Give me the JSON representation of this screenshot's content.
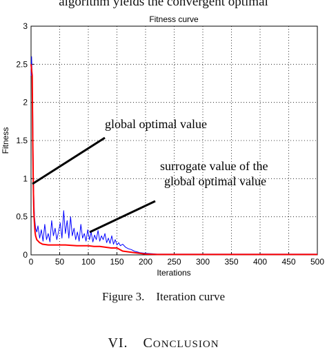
{
  "page": {
    "top_text": "algorithm yields the convergent optimal",
    "caption": "Figure 3.    Iteration curve",
    "section_number": "VI.",
    "section_title_first": "C",
    "section_title_rest": "ONCLUSION"
  },
  "chart_data": {
    "type": "line",
    "title": "Fitness curve",
    "xlabel": "Iterations",
    "ylabel": "Fitness",
    "xlim": [
      0,
      500
    ],
    "ylim": [
      0,
      3
    ],
    "x_ticks": [
      0,
      50,
      100,
      150,
      200,
      250,
      300,
      350,
      400,
      450,
      500
    ],
    "y_ticks": [
      0,
      0.5,
      1,
      1.5,
      2,
      2.5,
      3
    ],
    "grid": true,
    "series": [
      {
        "color": "#0000ff",
        "x": [
          0,
          1,
          2,
          3,
          4,
          5,
          6,
          8,
          10,
          12,
          15,
          18,
          21,
          24,
          27,
          30,
          33,
          36,
          39,
          42,
          45,
          48,
          51,
          54,
          57,
          60,
          63,
          66,
          69,
          72,
          75,
          78,
          81,
          84,
          87,
          90,
          93,
          96,
          99,
          102,
          105,
          108,
          111,
          114,
          117,
          120,
          123,
          126,
          129,
          132,
          135,
          138,
          141,
          144,
          147,
          150,
          153,
          156,
          160,
          165,
          170,
          175,
          180,
          185,
          190,
          200,
          210,
          220,
          240,
          260,
          300,
          350,
          400,
          450,
          500
        ],
        "y": [
          2.35,
          2.6,
          2.3,
          1.9,
          1.1,
          0.75,
          0.5,
          0.35,
          0.3,
          0.38,
          0.22,
          0.33,
          0.18,
          0.4,
          0.2,
          0.28,
          0.17,
          0.45,
          0.25,
          0.35,
          0.2,
          0.3,
          0.42,
          0.22,
          0.58,
          0.28,
          0.45,
          0.22,
          0.5,
          0.25,
          0.35,
          0.2,
          0.3,
          0.18,
          0.4,
          0.22,
          0.28,
          0.18,
          0.33,
          0.2,
          0.3,
          0.17,
          0.26,
          0.2,
          0.32,
          0.18,
          0.25,
          0.2,
          0.28,
          0.16,
          0.22,
          0.15,
          0.25,
          0.14,
          0.2,
          0.13,
          0.16,
          0.12,
          0.14,
          0.1,
          0.08,
          0.07,
          0.05,
          0.04,
          0.03,
          0.02,
          0.015,
          0.01,
          0.01,
          0.01,
          0.01,
          0.01,
          0.01,
          0.01,
          0.01
        ]
      },
      {
        "color": "#ff0000",
        "x": [
          0,
          2,
          3,
          4,
          5,
          6,
          7,
          8,
          10,
          15,
          20,
          30,
          40,
          60,
          80,
          100,
          110,
          120,
          130,
          140,
          150,
          160,
          170,
          180,
          190,
          200,
          220,
          250,
          300,
          400,
          500
        ],
        "y": [
          2.5,
          2.35,
          1.5,
          0.9,
          0.55,
          0.4,
          0.3,
          0.25,
          0.2,
          0.16,
          0.14,
          0.13,
          0.13,
          0.13,
          0.12,
          0.12,
          0.11,
          0.11,
          0.1,
          0.09,
          0.09,
          0.05,
          0.04,
          0.03,
          0.02,
          0.01,
          0.005,
          0.005,
          0.005,
          0.005,
          0.005
        ]
      }
    ],
    "annotations": [
      {
        "text": "global optimal value",
        "arrow_to": [
          4,
          0.95
        ]
      },
      {
        "text": "surrogate value of the",
        "arrow_to": [
          103,
          0.35
        ]
      },
      {
        "text": "global optimal value",
        "arrow_to": null
      }
    ]
  }
}
